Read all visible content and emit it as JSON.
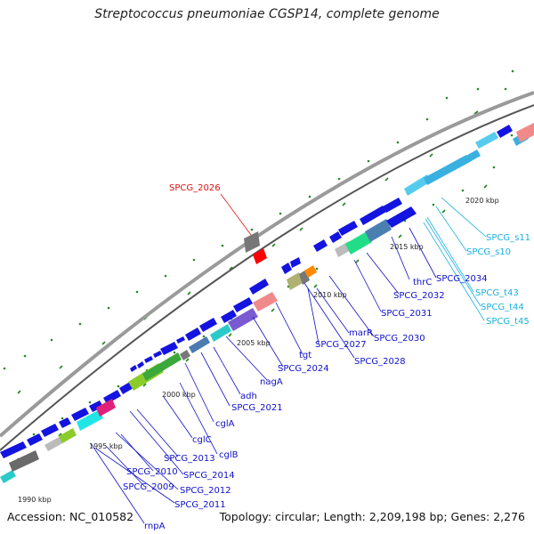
{
  "title": "Streptococcus pneumoniae CGSP14, complete genome",
  "footer": {
    "accession": "Accession: NC_010582",
    "stats": "Topology: circular; Length: 2,209,198 bp; Genes: 2,276"
  },
  "colors": {
    "gene_label": "#1010c8",
    "rna_label": "#1ab0e0",
    "highlight_label": "#e01010"
  },
  "kbp_ticks": [
    "1990 kbp",
    "1995 kbp",
    "2000 kbp",
    "2005 kbp",
    "2010 kbp",
    "2015 kbp",
    "2020 kbp"
  ],
  "highlighted_gene": "SPCG_2026",
  "gene_labels": [
    "rnpA",
    "SPCG_2011",
    "SPCG_2009",
    "SPCG_2012",
    "SPCG_2010",
    "SPCG_2014",
    "SPCG_2013",
    "cglB",
    "cglC",
    "cglA",
    "SPCG_2021",
    "adh",
    "nagA",
    "SPCG_2024",
    "tgt",
    "SPCG_2027",
    "SPCG_2028",
    "marR",
    "SPCG_2030",
    "SPCG_2031",
    "SPCG_2032",
    "thrC",
    "SPCG_2034"
  ],
  "rna_labels": [
    "SPCG_s11",
    "SPCG_s10",
    "SPCG_t43",
    "SPCG_t44",
    "SPCG_t45"
  ]
}
